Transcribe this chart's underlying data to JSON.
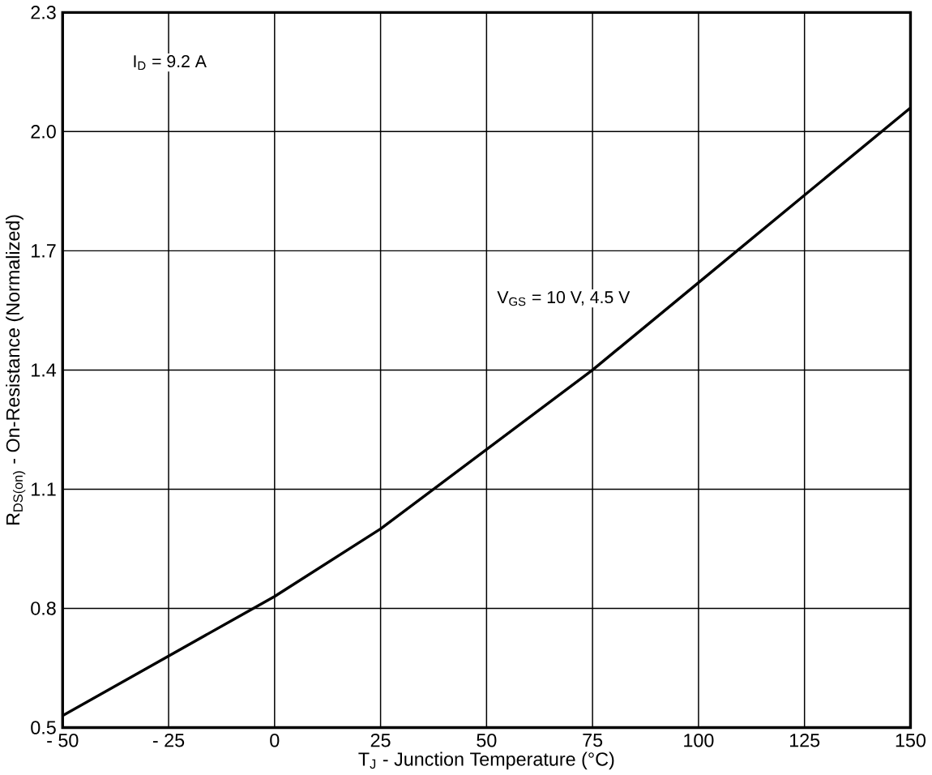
{
  "chart_data": {
    "type": "line",
    "xlabel": "T$_{J}$ - Junction Temperature (°C)",
    "ylabel": "R$_{DS(on)}$ - On-Resistance (Normalized)",
    "x": [
      -50,
      -25,
      0,
      25,
      50,
      75,
      100,
      125,
      150
    ],
    "series": [
      {
        "color": "#000000",
        "values": [
          0.53,
          0.68,
          0.83,
          1.0,
          1.2,
          1.4,
          1.62,
          1.84,
          2.06
        ]
      }
    ],
    "xlim": [
      -50,
      150
    ],
    "ylim": [
      0.5,
      2.3
    ],
    "xticks": [
      {
        "value": -50,
        "label": "- 50"
      },
      {
        "value": -25,
        "label": "- 25"
      },
      0,
      25,
      50,
      75,
      100,
      125,
      150
    ],
    "yticks": [
      0.5,
      0.8,
      1.1,
      1.4,
      1.7,
      {
        "value": 2.0,
        "label": "2.0"
      },
      2.3
    ],
    "grid": true,
    "marker": "none",
    "line_style": "solid",
    "annotations": [
      "I$_{D}$ = 9.2 A",
      "V$_{GS}$ = 10 V, 4.5 V"
    ]
  }
}
